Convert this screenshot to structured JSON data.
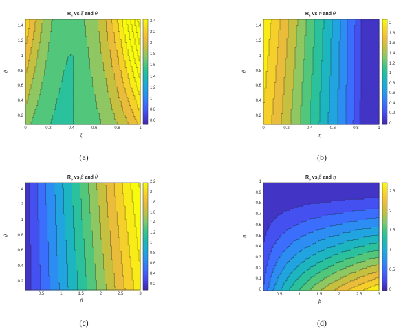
{
  "chart_data": [
    {
      "type": "heatmap",
      "subtype": "filled-contour",
      "title": "R_s vs ξ and θ",
      "title_parts": {
        "base": "R",
        "sub": "s",
        "mid": " vs ",
        "v1": "ξ",
        "and": " and ",
        "v2": "θ"
      },
      "xlabel": "ξ",
      "ylabel": "θ",
      "xlim": [
        0,
        1
      ],
      "ylim": [
        0.1,
        1.5
      ],
      "xticks": [
        "0",
        "0.2",
        "0.4",
        "0.6",
        "0.8",
        "1"
      ],
      "yticks": [
        "0.2",
        "0.4",
        "0.6",
        "0.8",
        "1",
        "1.2",
        "1.4"
      ],
      "colorbar_ticks": [
        "0.6",
        "0.8",
        "1",
        "1.2",
        "1.4",
        "1.6",
        "1.8",
        "2",
        "2.2",
        "2.4"
      ],
      "clim": [
        0.55,
        2.45
      ],
      "caption": "(a)"
    },
    {
      "type": "heatmap",
      "subtype": "filled-contour",
      "title": "R_s vs η and θ",
      "title_parts": {
        "base": "R",
        "sub": "s",
        "mid": " vs ",
        "v1": "η",
        "and": " and ",
        "v2": "θ"
      },
      "xlabel": "η",
      "ylabel": "θ",
      "xlim": [
        0,
        1
      ],
      "ylim": [
        0.1,
        1.5
      ],
      "xticks": [
        "0",
        "0.2",
        "0.4",
        "0.6",
        "0.8",
        "1"
      ],
      "yticks": [
        "0.2",
        "0.4",
        "0.6",
        "0.8",
        "1",
        "1.2",
        "1.4"
      ],
      "colorbar_ticks": [
        "0",
        "0.2",
        "0.4",
        "0.6",
        "0.8",
        "1",
        "1.2",
        "1.4",
        "1.6",
        "1.8",
        "2"
      ],
      "clim": [
        0,
        2.1
      ],
      "caption": "(b)"
    },
    {
      "type": "heatmap",
      "subtype": "filled-contour",
      "title": "R_s vs β and θ",
      "title_parts": {
        "base": "R",
        "sub": "s",
        "mid": " vs ",
        "v1": "β",
        "and": " and ",
        "v2": "θ"
      },
      "xlabel": "β",
      "ylabel": "θ",
      "xlim": [
        0.1,
        3
      ],
      "ylim": [
        0.1,
        1.5
      ],
      "xticks": [
        "0.5",
        "1",
        "1.5",
        "2",
        "2.5",
        "3"
      ],
      "yticks": [
        "0.2",
        "0.4",
        "0.6",
        "0.8",
        "1",
        "1.2",
        "1.4"
      ],
      "colorbar_ticks": [
        "0.2",
        "0.4",
        "0.6",
        "0.8",
        "1",
        "1.2",
        "1.4",
        "1.6",
        "1.8",
        "2",
        "2.2"
      ],
      "clim": [
        0.1,
        2.2
      ],
      "caption": "(c)"
    },
    {
      "type": "heatmap",
      "subtype": "filled-contour",
      "title": "R_s vs β and η",
      "title_parts": {
        "base": "R",
        "sub": "s",
        "mid": " vs ",
        "v1": "β",
        "and": " and ",
        "v2": "η"
      },
      "xlabel": "β",
      "ylabel": "η",
      "xlim": [
        0.1,
        3
      ],
      "ylim": [
        0,
        1
      ],
      "xticks": [
        "0.5",
        "1",
        "1.5",
        "2",
        "2.5",
        "3"
      ],
      "yticks": [
        "0",
        "0.1",
        "0.2",
        "0.3",
        "0.4",
        "0.5",
        "0.6",
        "0.7",
        "0.8",
        "0.9",
        "1"
      ],
      "colorbar_ticks": [
        "0",
        "0.5",
        "1",
        "1.5",
        "2",
        "2.5"
      ],
      "clim": [
        0,
        2.75
      ],
      "caption": "(d)"
    }
  ],
  "colormap": [
    "#3e26a8",
    "#4746eb",
    "#3e6afe",
    "#2b8ef2",
    "#1ea9dc",
    "#1bbbb1",
    "#38c686",
    "#82c96a",
    "#c3c040",
    "#eebc3a",
    "#f8d626",
    "#f9fb0e"
  ]
}
